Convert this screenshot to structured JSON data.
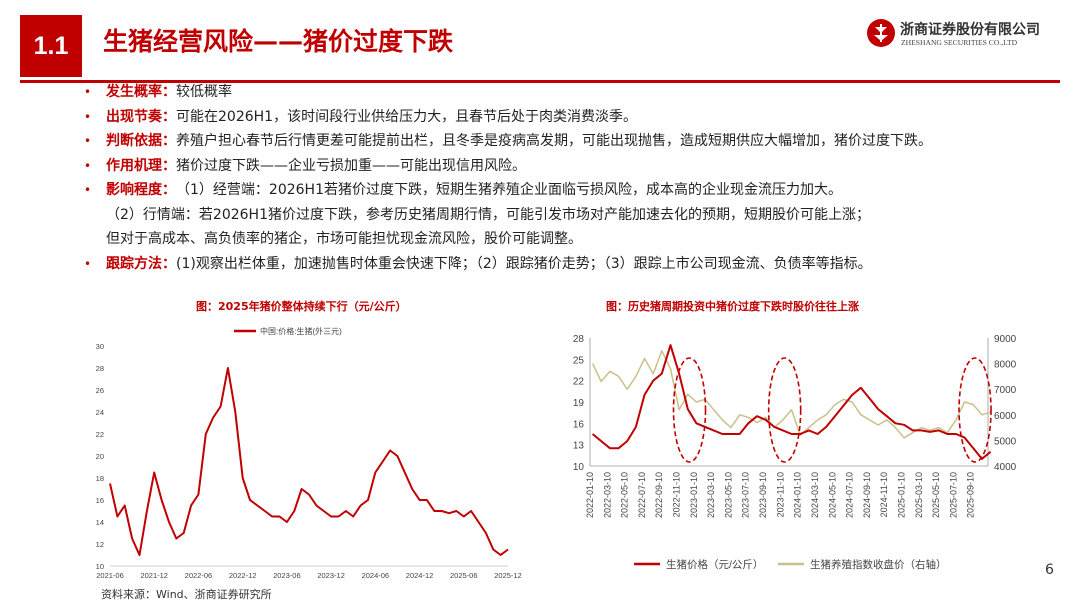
{
  "header": {
    "section_number": "1.1",
    "title": "生猪经营风险——猪价过度下跌",
    "logo_cn": "浙商证券股份有限公司",
    "logo_en": "ZHESHANG SECURITIES CO.,LTD"
  },
  "bullets": [
    {
      "label": "发生概率：",
      "text": "较低概率"
    },
    {
      "label": "出现节奏：",
      "text": "可能在2026H1，该时间段行业供给压力大，且春节后处于肉类消费淡季。"
    },
    {
      "label": "判断依据：",
      "text": "养殖户担心春节后行情更差可能提前出栏，且冬季是疫病高发期，可能出现抛售，造成短期供应大幅增加，猪价过度下跌。"
    },
    {
      "label": "作用机理：",
      "text": "猪价过度下跌——企业亏损加重——可能出现信用风险。"
    },
    {
      "label": "影响程度：",
      "text": "（1）经营端：2026H1若猪价过度下跌，短期生猪养殖企业面临亏损风险，成本高的企业现金流压力加大。"
    },
    {
      "label": "",
      "text": "（2）行情端：若2026H1猪价过度下跌，参考历史猪周期行情，可能引发市场对产能加速去化的预期，短期股价可能上涨；"
    },
    {
      "label": "",
      "text": "但对于高成本、高负债率的猪企，市场可能担忧现金流风险，股价可能调整。"
    },
    {
      "label": "跟踪方法：",
      "text": "(1)观察出栏体重，加速抛售时体重会快速下降；（2）跟踪猪价走势；（3）跟踪上市公司现金流、负债率等指标。"
    }
  ],
  "chart_data": [
    {
      "type": "line",
      "title": "图：2025年猪价整体持续下行（元/公斤）",
      "series": [
        {
          "name": "中国:价格:生猪(外三元)",
          "color": "#c00000",
          "x": [
            "2021-06",
            "2021-07",
            "2021-08",
            "2021-09",
            "2021-10",
            "2021-11",
            "2021-12",
            "2022-01",
            "2022-02",
            "2022-03",
            "2022-04",
            "2022-05",
            "2022-06",
            "2022-07",
            "2022-08",
            "2022-09",
            "2022-10",
            "2022-11",
            "2022-12",
            "2023-01",
            "2023-02",
            "2023-03",
            "2023-04",
            "2023-05",
            "2023-06",
            "2023-07",
            "2023-08",
            "2023-09",
            "2023-10",
            "2023-11",
            "2023-12",
            "2024-01",
            "2024-02",
            "2024-03",
            "2024-04",
            "2024-05",
            "2024-06",
            "2024-07",
            "2024-08",
            "2024-09",
            "2024-10",
            "2024-11",
            "2024-12",
            "2025-01",
            "2025-02",
            "2025-03",
            "2025-04",
            "2025-05",
            "2025-06",
            "2025-07",
            "2025-08",
            "2025-09",
            "2025-10",
            "2025-11",
            "2025-12"
          ],
          "values": [
            17.5,
            14.5,
            15.5,
            12.5,
            11,
            15,
            18.5,
            16,
            14,
            12.5,
            13,
            15.5,
            16.5,
            22,
            23.5,
            24.5,
            28,
            24,
            18,
            16,
            15.5,
            15,
            14.5,
            14.5,
            14,
            15,
            17,
            16.5,
            15.5,
            15,
            14.5,
            14.5,
            15,
            14.5,
            15.5,
            16,
            18.5,
            19.5,
            20.5,
            20,
            18.5,
            17,
            16,
            16,
            15,
            15,
            14.8,
            15,
            14.5,
            15,
            14,
            13,
            11.5,
            11,
            11.5
          ]
        }
      ],
      "x_ticks": [
        "2021-06",
        "2021-12",
        "2022-06",
        "2022-12",
        "2023-06",
        "2023-12",
        "2024-06",
        "2024-12",
        "2025-06",
        "2025-12"
      ],
      "ylim": [
        10,
        30
      ],
      "y_ticks": [
        "10",
        "12",
        "14",
        "16",
        "18",
        "20",
        "22",
        "24",
        "26",
        "28",
        "30"
      ],
      "grid": false,
      "legend": "top"
    },
    {
      "type": "line",
      "title": "图：历史猪周期投资中猪价过度下跌时股价往往上涨",
      "x_ticks": [
        "2022-01-10",
        "2022-03-10",
        "2022-05-10",
        "2022-07-10",
        "2022-09-10",
        "2022-11-10",
        "2023-01-10",
        "2023-03-10",
        "2023-05-10",
        "2023-07-10",
        "2023-09-10",
        "2023-11-10",
        "2024-01-10",
        "2024-03-10",
        "2024-05-10",
        "2024-07-10",
        "2024-09-10",
        "2024-11-10",
        "2025-01-10",
        "2025-03-10",
        "2025-05-10",
        "2025-07-10",
        "2025-09-10"
      ],
      "y_left": {
        "lim": [
          10,
          28
        ],
        "ticks": [
          "10",
          "13",
          "16",
          "19",
          "22",
          "25",
          "28"
        ]
      },
      "y_right": {
        "lim": [
          4000,
          9000
        ],
        "ticks": [
          "4000",
          "5000",
          "6000",
          "7000",
          "8000",
          "9000"
        ]
      },
      "series": [
        {
          "name": "生猪价格（元/公斤）",
          "axis": "left",
          "color": "#c00000",
          "x": [
            "2022-01",
            "2022-02",
            "2022-03",
            "2022-04",
            "2022-05",
            "2022-06",
            "2022-07",
            "2022-08",
            "2022-09",
            "2022-10",
            "2022-11",
            "2022-12",
            "2023-01",
            "2023-02",
            "2023-03",
            "2023-04",
            "2023-05",
            "2023-06",
            "2023-07",
            "2023-08",
            "2023-09",
            "2023-10",
            "2023-11",
            "2023-12",
            "2024-01",
            "2024-02",
            "2024-03",
            "2024-04",
            "2024-05",
            "2024-06",
            "2024-07",
            "2024-08",
            "2024-09",
            "2024-10",
            "2024-11",
            "2024-12",
            "2025-01",
            "2025-02",
            "2025-03",
            "2025-04",
            "2025-05",
            "2025-06",
            "2025-07",
            "2025-08",
            "2025-09",
            "2025-10",
            "2025-11"
          ],
          "values": [
            14.5,
            13.5,
            12.5,
            12.5,
            13.5,
            15.5,
            20,
            22,
            23,
            27,
            23,
            18,
            16,
            15.5,
            15,
            14.5,
            14.5,
            14.5,
            16,
            17,
            16.5,
            15.5,
            15,
            14.5,
            14.5,
            15,
            14.5,
            15.5,
            17,
            18.5,
            20,
            21,
            19.5,
            18,
            17,
            16,
            15.8,
            15,
            15,
            14.8,
            15,
            14.5,
            14.5,
            14,
            12.5,
            11,
            12
          ]
        },
        {
          "name": "生猪养殖指数收盘价（右轴）",
          "axis": "right",
          "color": "#c9c08a",
          "x": [
            "2022-01",
            "2022-02",
            "2022-03",
            "2022-04",
            "2022-05",
            "2022-06",
            "2022-07",
            "2022-08",
            "2022-09",
            "2022-10",
            "2022-11",
            "2022-12",
            "2023-01",
            "2023-02",
            "2023-03",
            "2023-04",
            "2023-05",
            "2023-06",
            "2023-07",
            "2023-08",
            "2023-09",
            "2023-10",
            "2023-11",
            "2023-12",
            "2024-01",
            "2024-02",
            "2024-03",
            "2024-04",
            "2024-05",
            "2024-06",
            "2024-07",
            "2024-08",
            "2024-09",
            "2024-10",
            "2024-11",
            "2024-12",
            "2025-01",
            "2025-02",
            "2025-03",
            "2025-04",
            "2025-05",
            "2025-06",
            "2025-07",
            "2025-08",
            "2025-09",
            "2025-10",
            "2025-11"
          ],
          "values": [
            8000,
            7300,
            7700,
            7500,
            7000,
            7500,
            8200,
            7600,
            8500,
            7800,
            6200,
            6800,
            6500,
            6600,
            6200,
            5800,
            5500,
            6000,
            5900,
            5700,
            5900,
            5500,
            5800,
            6200,
            5200,
            5500,
            5800,
            6000,
            6400,
            6600,
            6500,
            6000,
            5800,
            5600,
            5800,
            5500,
            5100,
            5300,
            5500,
            5400,
            5500,
            5300,
            5800,
            6500,
            6400,
            6000,
            6100
          ]
        }
      ],
      "highlight_windows": [
        "2022-12",
        "2023-11",
        "2025-09"
      ],
      "grid": false,
      "legend": "bottom"
    }
  ],
  "footer": {
    "source": "资料来源：Wind、浙商证券研究所",
    "page_number": "6"
  }
}
